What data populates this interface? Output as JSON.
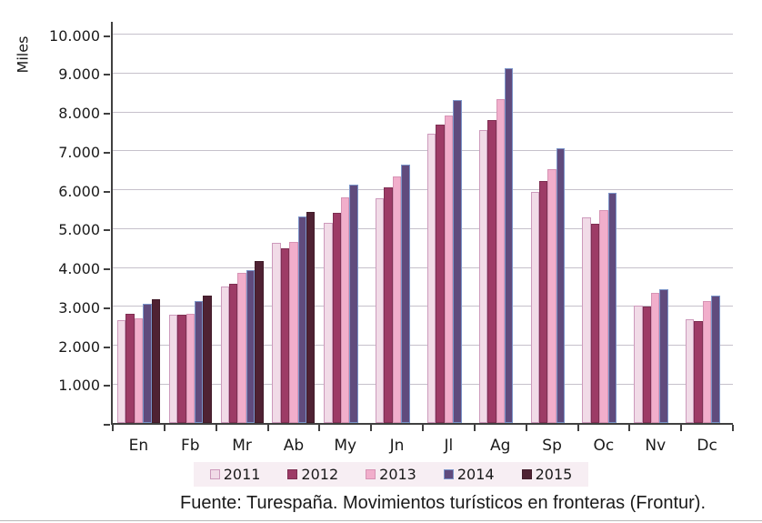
{
  "chart_data": {
    "type": "bar",
    "y_axis_title": "Miles",
    "ylim": [
      0,
      10000
    ],
    "grid": "horizontal-only",
    "legend_position": "bottom",
    "y_ticks": [
      {
        "value": 1000,
        "label": "1.000"
      },
      {
        "value": 2000,
        "label": "2.000"
      },
      {
        "value": 3000,
        "label": "3.000"
      },
      {
        "value": 4000,
        "label": "4.000"
      },
      {
        "value": 5000,
        "label": "5.000"
      },
      {
        "value": 6000,
        "label": "6.000"
      },
      {
        "value": 7000,
        "label": "7.000"
      },
      {
        "value": 8000,
        "label": "8.000"
      },
      {
        "value": 9000,
        "label": "9.000"
      },
      {
        "value": 10000,
        "label": "10.000"
      }
    ],
    "categories": [
      "En",
      "Fb",
      "Mr",
      "Ab",
      "My",
      "Jn",
      "Jl",
      "Ag",
      "Sp",
      "Oc",
      "Nv",
      "Dc"
    ],
    "series": [
      {
        "name": "2011",
        "fill": "#F1DBE7",
        "border": "#CD9ABC",
        "values": [
          2650,
          2790,
          3510,
          4630,
          5150,
          5780,
          7430,
          7530,
          5950,
          5280,
          3010,
          2660
        ]
      },
      {
        "name": "2012",
        "fill": "#9D3B66",
        "border": "#7E2F52",
        "values": [
          2810,
          2790,
          3590,
          4500,
          5410,
          6050,
          7670,
          7790,
          6220,
          5120,
          2990,
          2610
        ]
      },
      {
        "name": "2013",
        "fill": "#F1AECB",
        "border": "#D693B4",
        "values": [
          2700,
          2810,
          3870,
          4660,
          5810,
          6340,
          7910,
          8330,
          6530,
          5480,
          3350,
          3140
        ]
      },
      {
        "name": "2014",
        "fill": "#604B7D",
        "border": "#7C95C9",
        "values": [
          3060,
          3130,
          3920,
          5300,
          6140,
          6650,
          8310,
          9130,
          7060,
          5920,
          3430,
          3270
        ]
      },
      {
        "name": "2015",
        "fill": "#4F2233",
        "border": "#421C2A",
        "values": [
          3180,
          3270,
          4160,
          5420,
          null,
          null,
          null,
          null,
          null,
          null,
          null,
          null
        ]
      }
    ],
    "source": "Fuente: Turespaña. Movimientos turísticos en fronteras (Frontur)."
  },
  "colors": {
    "axis": "#404040",
    "gridline": "#C6C1CB",
    "legend_background": "#F7EEF3",
    "text": "#1A1A1A",
    "background": "#FFFFFF"
  }
}
